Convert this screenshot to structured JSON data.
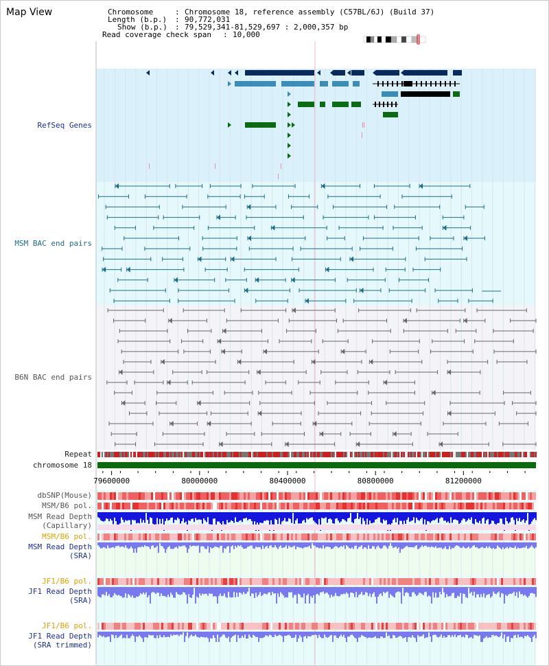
{
  "header": {
    "title": "Map View",
    "info": {
      "chromosome_key": "Chromosome",
      "chromosome_val": "Chromosome 18, reference assembly (C57BL/6J) (Build 37)",
      "length_key": "Length (b.p.)",
      "length_val": "90,772,031",
      "show_key": "Show (b.p.)",
      "show_val": "79,529,341-81,529,697 : 2,000,357 bp",
      "coverage_key": "Read coverage check span",
      "coverage_val": "10,000"
    }
  },
  "tracks": {
    "refseq": "RefSeq Genes",
    "msm_bac": "MSM BAC end pairs",
    "b6n_bac": "B6N BAC end pairs",
    "repeat": "Repeat",
    "chromosome": "chromosome 18",
    "dbsnp": "dbSNP(Mouse)",
    "msm_b6_pol_1": "MSM/B6 pol.",
    "msm_read_depth_cap_1": "MSM Read Depth",
    "msm_read_depth_cap_2": "(Capillary)",
    "msm_b6_pol_2": "MSM/B6 pol.",
    "msm_read_depth_sra_1": "MSM Read Depth",
    "msm_read_depth_sra_2": "(SRA)",
    "jf1_b6_pol_1": "JF1/B6 pol.",
    "jf1_read_depth_sra_1": "JF1 Read Depth",
    "jf1_read_depth_sra_2": "(SRA)",
    "jf1_b6_pol_2": "JF1/B6 pol.",
    "jf1_read_depth_trim_1": "JF1 Read Depth",
    "jf1_read_depth_trim_2": "(SRA trimmed)"
  },
  "axis": {
    "ticks": [
      79600000,
      80000000,
      80400000,
      80800000,
      81200000
    ],
    "start": 79529341,
    "end": 81529697
  },
  "colors": {
    "refseq_bg": "#daf0fa",
    "msm_bg": "#e5f8fb",
    "b6n_bg": "#f4f4f8",
    "lower_bg": "#e8fbfb",
    "gene_dark": "#0a2a5c",
    "gene_mid": "#3c8cb8",
    "gene_green": "#0b6b12",
    "bac_msm": "#1d6d84",
    "bac_b6n": "#666666",
    "chromosome": "#0a6b0a",
    "read_depth_blue": "#1515e0",
    "read_depth_light": "#7878f0",
    "pol_red": "#f03030",
    "highlight": "#f4b8c8"
  }
}
